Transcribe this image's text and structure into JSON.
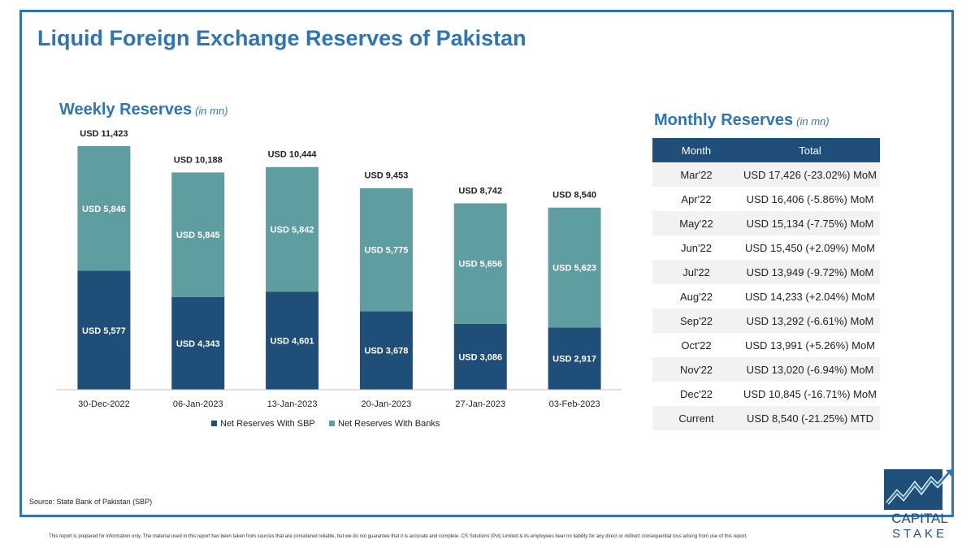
{
  "title": "Liquid Foreign Exchange Reserves of Pakistan",
  "weekly": {
    "title": "Weekly Reserves",
    "unit": "(in mn)"
  },
  "monthly": {
    "title": "Monthly Reserves",
    "unit": "(in mn)",
    "headers": [
      "Month",
      "Total"
    ],
    "rows": [
      [
        "Mar'22",
        "USD 17,426 (-23.02%) MoM"
      ],
      [
        "Apr'22",
        "USD 16,406 (-5.86%) MoM"
      ],
      [
        "May'22",
        "USD 15,134 (-7.75%) MoM"
      ],
      [
        "Jun'22",
        "USD 15,450 (+2.09%) MoM"
      ],
      [
        "Jul'22",
        "USD 13,949 (-9.72%) MoM"
      ],
      [
        "Aug'22",
        "USD 14,233 (+2.04%) MoM"
      ],
      [
        "Sep'22",
        "USD 13,292 (-6.61%) MoM"
      ],
      [
        "Oct'22",
        "USD 13,991 (+5.26%) MoM"
      ],
      [
        "Nov'22",
        "USD 13,020 (-6.94%) MoM"
      ],
      [
        "Dec'22",
        "USD 10,845 (-16.71%) MoM"
      ],
      [
        "Current",
        "USD 8,540 (-21.25%) MTD"
      ]
    ]
  },
  "chart_data": {
    "type": "bar",
    "stacked": true,
    "categories": [
      "30-Dec-2022",
      "06-Jan-2023",
      "13-Jan-2023",
      "20-Jan-2023",
      "27-Jan-2023",
      "03-Feb-2023"
    ],
    "series": [
      {
        "name": "Net Reserves With SBP",
        "values": [
          5577,
          4343,
          4601,
          3678,
          3086,
          2917
        ],
        "color": "#1f4e79",
        "labels": [
          "USD 5,577",
          "USD 4,343",
          "USD 4,601",
          "USD 3,678",
          "USD 3,086",
          "USD 2,917"
        ]
      },
      {
        "name": "Net Reserves With Banks",
        "values": [
          5846,
          5845,
          5842,
          5775,
          5656,
          5623
        ],
        "color": "#5f9ea0",
        "labels": [
          "USD 5,846",
          "USD 5,845",
          "USD 5,842",
          "USD 5,775",
          "USD 5,656",
          "USD 5,623"
        ]
      }
    ],
    "totals": [
      11423,
      10188,
      10444,
      9453,
      8742,
      8540
    ],
    "total_labels": [
      "USD 11,423",
      "USD 10,188",
      "USD 10,444",
      "USD 9,453",
      "USD 8,742",
      "USD 8,540"
    ],
    "ylim": [
      0,
      11423
    ],
    "legend": "bottom",
    "grid": false
  },
  "source": "Source: State Bank of Pakistan (SBP)",
  "disclaimer": "This report is prepared for information only. The material used in this report has been taken from sources that are considered reliable, but we do not guarantee that it is accurate and complete. CS Solutions (Pvt) Limited & its employees bear no liability for any direct or indirect consequential loss arising from use of this report.",
  "logo": {
    "line1": "CAPITAL",
    "line2": "STAKE"
  }
}
